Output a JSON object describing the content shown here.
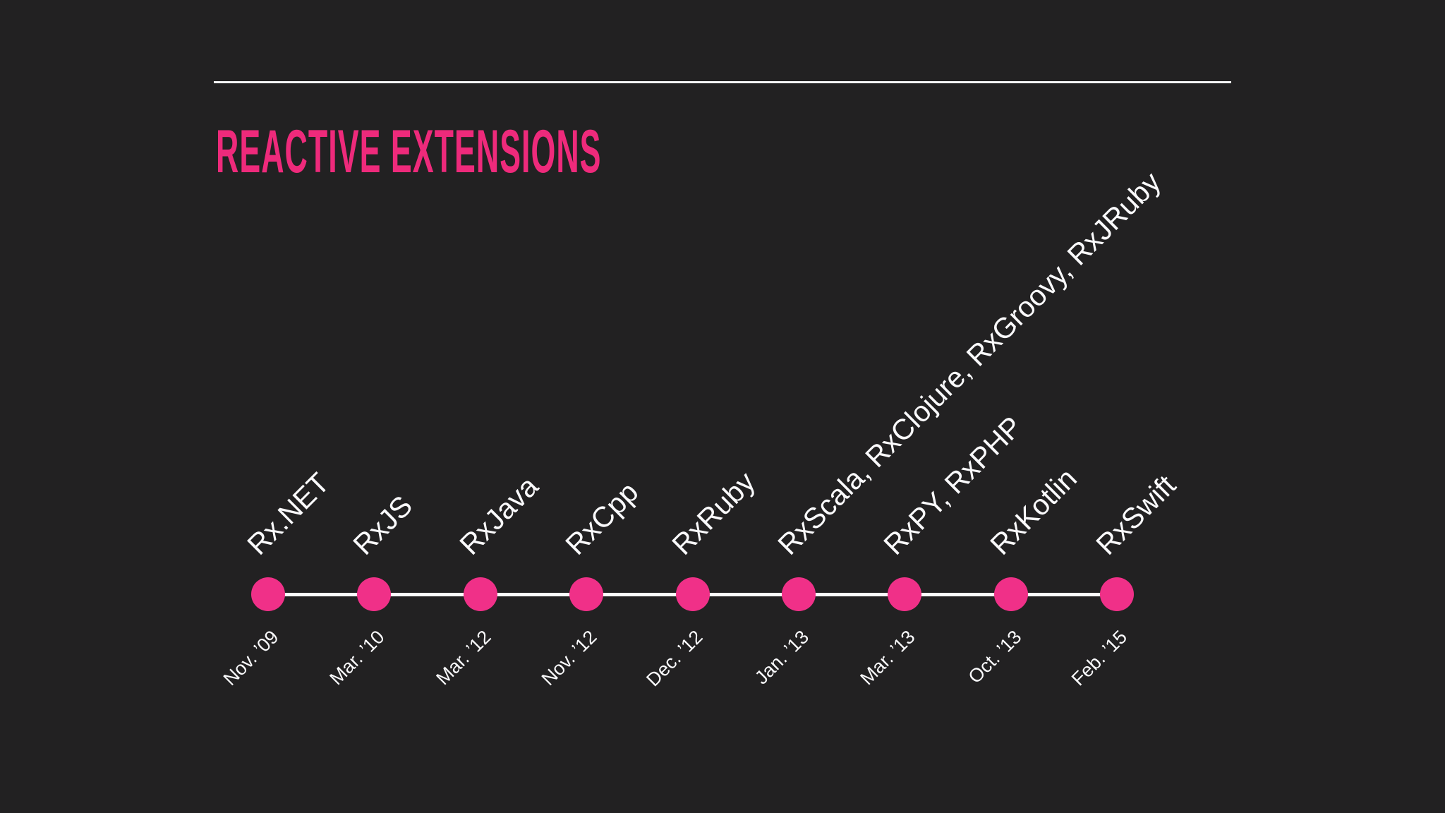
{
  "slide": {
    "title": "REACTIVE EXTENSIONS",
    "colors": {
      "background": "#222122",
      "title_pink": "#ee2a7b",
      "dot_pink": "#f03088",
      "text_white": "#fafafc",
      "line_white": "#fcfcfd"
    }
  },
  "chart_data": {
    "type": "timeline",
    "title": "REACTIVE EXTENSIONS",
    "orientation": "horizontal",
    "events": [
      {
        "label": "Rx.NET",
        "date": "Nov. ’09"
      },
      {
        "label": "RxJS",
        "date": "Mar. ’10"
      },
      {
        "label": "RxJava",
        "date": "Mar. ’12"
      },
      {
        "label": "RxCpp",
        "date": "Nov. ’12"
      },
      {
        "label": "RxRuby",
        "date": "Dec. ’12"
      },
      {
        "label": "RxScala, RxClojure, RxGroovy, RxJRuby",
        "date": "Jan. ’13"
      },
      {
        "label": "RxPY, RxPHP",
        "date": "Mar. ’13"
      },
      {
        "label": "RxKotlin",
        "date": "Oct. ’13"
      },
      {
        "label": "RxSwift",
        "date": "Feb. ’15"
      }
    ]
  }
}
